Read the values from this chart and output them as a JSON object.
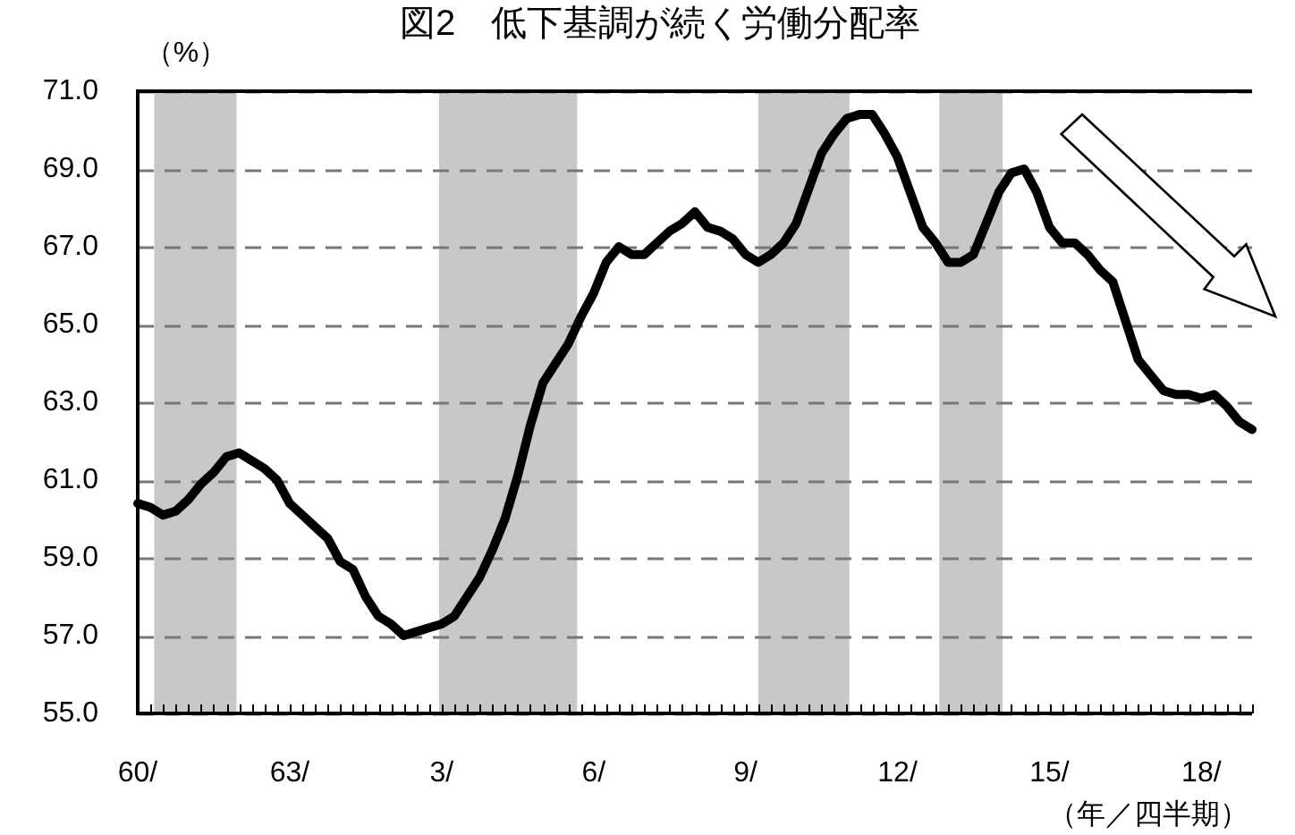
{
  "chart_data": {
    "type": "line",
    "title": "図2　低下基調が続く労働分配率",
    "ylabel": "（%）",
    "xlabel": "（年／四半期）",
    "categories": [
      "60/",
      null,
      null,
      null,
      null,
      null,
      null,
      null,
      null,
      null,
      null,
      null,
      "63/",
      null,
      null,
      null,
      null,
      null,
      null,
      null,
      null,
      null,
      null,
      null,
      "3/",
      null,
      null,
      null,
      null,
      null,
      null,
      null,
      null,
      null,
      null,
      null,
      "6/",
      null,
      null,
      null,
      null,
      null,
      null,
      null,
      null,
      null,
      null,
      null,
      "9/",
      null,
      null,
      null,
      null,
      null,
      null,
      null,
      null,
      null,
      null,
      null,
      "12/",
      null,
      null,
      null,
      null,
      null,
      null,
      null,
      null,
      null,
      null,
      null,
      "15/",
      null,
      null,
      null,
      null,
      null,
      null,
      null,
      null,
      null,
      null,
      null,
      "18/",
      null,
      null,
      null,
      null
    ],
    "ylim": [
      55,
      71
    ],
    "yticks": [
      {
        "value": 55,
        "label": "55.0"
      },
      {
        "value": 57,
        "label": "57.0"
      },
      {
        "value": 59,
        "label": "59.0"
      },
      {
        "value": 61,
        "label": "61.0"
      },
      {
        "value": 63,
        "label": "63.0"
      },
      {
        "value": 65,
        "label": "65.0"
      },
      {
        "value": 67,
        "label": "67.0"
      },
      {
        "value": 69,
        "label": "69.0"
      },
      {
        "value": 71,
        "label": "71.0"
      }
    ],
    "grid": "y",
    "legend": false,
    "marker": "none",
    "line_style": "solid",
    "series": [
      {
        "color": "#000000",
        "values": [
          60.4,
          60.3,
          60.1,
          60.2,
          60.5,
          60.9,
          61.2,
          61.6,
          61.7,
          61.5,
          61.3,
          61.0,
          60.4,
          60.1,
          59.8,
          59.5,
          58.9,
          58.7,
          58.0,
          57.5,
          57.3,
          57.0,
          57.1,
          57.2,
          57.3,
          57.5,
          58.0,
          58.5,
          59.2,
          60.0,
          61.1,
          62.4,
          63.5,
          64.0,
          64.5,
          65.2,
          65.8,
          66.6,
          67.0,
          66.8,
          66.8,
          67.1,
          67.4,
          67.6,
          67.9,
          67.5,
          67.4,
          67.2,
          66.8,
          66.6,
          66.8,
          67.1,
          67.6,
          68.5,
          69.4,
          69.9,
          70.3,
          70.4,
          70.4,
          69.9,
          69.3,
          68.4,
          67.5,
          67.1,
          66.6,
          66.6,
          66.8,
          67.6,
          68.4,
          68.9,
          69.0,
          68.4,
          67.5,
          67.1,
          67.1,
          66.8,
          66.4,
          66.1,
          65.1,
          64.1,
          63.7,
          63.3,
          63.2,
          63.2,
          63.1,
          63.2,
          62.9,
          62.5,
          62.3
        ]
      }
    ]
  }
}
